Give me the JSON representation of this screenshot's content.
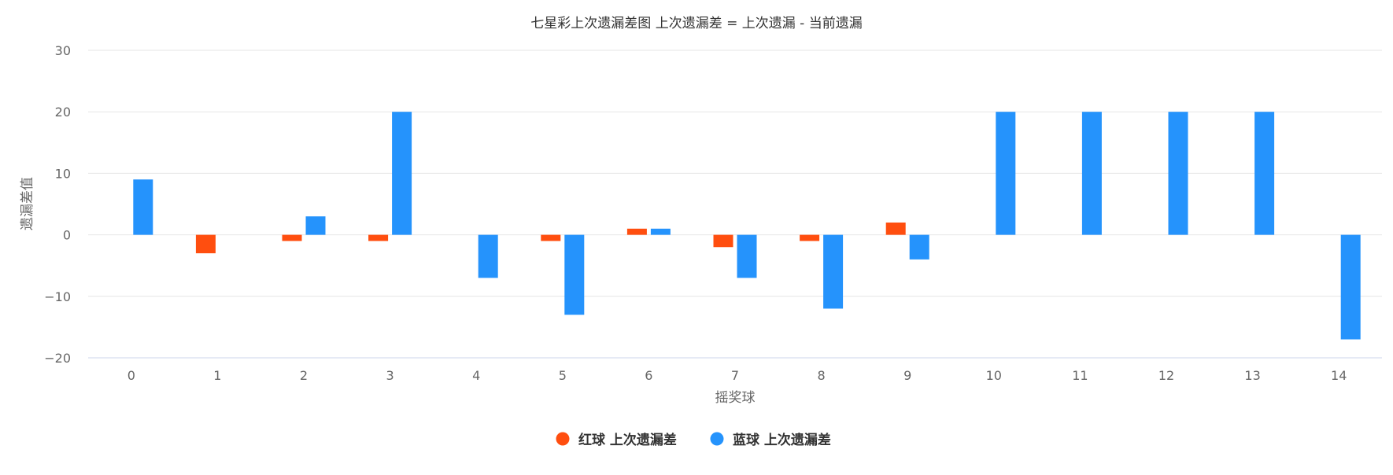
{
  "chart_data": {
    "type": "bar",
    "title": "七星彩上次遗漏差图 上次遗漏差 = 上次遗漏 - 当前遗漏",
    "xlabel": "摇奖球",
    "ylabel": "遗漏差值",
    "categories": [
      "0",
      "1",
      "2",
      "3",
      "4",
      "5",
      "6",
      "7",
      "8",
      "9",
      "10",
      "11",
      "12",
      "13",
      "14"
    ],
    "ylim": [
      -20,
      30
    ],
    "yticks": [
      30,
      20,
      10,
      0,
      -10,
      -20
    ],
    "grid": true,
    "legend_position": "bottom-center",
    "series": [
      {
        "name": "红球 上次遗漏差",
        "color": "#ff4e0f",
        "values": [
          null,
          -3,
          -1,
          -1,
          null,
          -1,
          1,
          -2,
          -1,
          2,
          null,
          null,
          null,
          null,
          null
        ]
      },
      {
        "name": "蓝球 上次遗漏差",
        "color": "#2593fc",
        "values": [
          9,
          null,
          3,
          20,
          -7,
          -13,
          1,
          -7,
          -12,
          -4,
          20,
          20,
          20,
          20,
          -17
        ]
      }
    ]
  }
}
